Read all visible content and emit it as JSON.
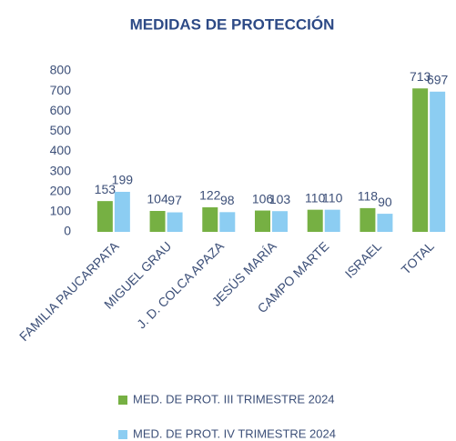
{
  "chart_data": {
    "type": "bar",
    "title": "MEDIDAS DE PROTECCIÓN",
    "categories": [
      "FAMILIA PAUCARPATA",
      "MIGUEL GRAU",
      "J. D. COLCA APAZA",
      "JESÚS MARÍA",
      "CAMPO MARTE",
      "ISRAEL",
      "TOTAL"
    ],
    "series": [
      {
        "name": "MED. DE PROT.  III TRIMESTRE 2024",
        "color": "#76b043",
        "values": [
          153,
          104,
          122,
          106,
          110,
          118,
          713
        ]
      },
      {
        "name": "MED. DE PROT.  IV TRIMESTRE 2024",
        "color": "#8ccdf2",
        "values": [
          199,
          97,
          98,
          103,
          110,
          90,
          697
        ]
      }
    ],
    "ylim": [
      0,
      800
    ],
    "yticks": [
      0,
      100,
      200,
      300,
      400,
      500,
      600,
      700,
      800
    ],
    "grid": false,
    "legend": "bottom"
  }
}
